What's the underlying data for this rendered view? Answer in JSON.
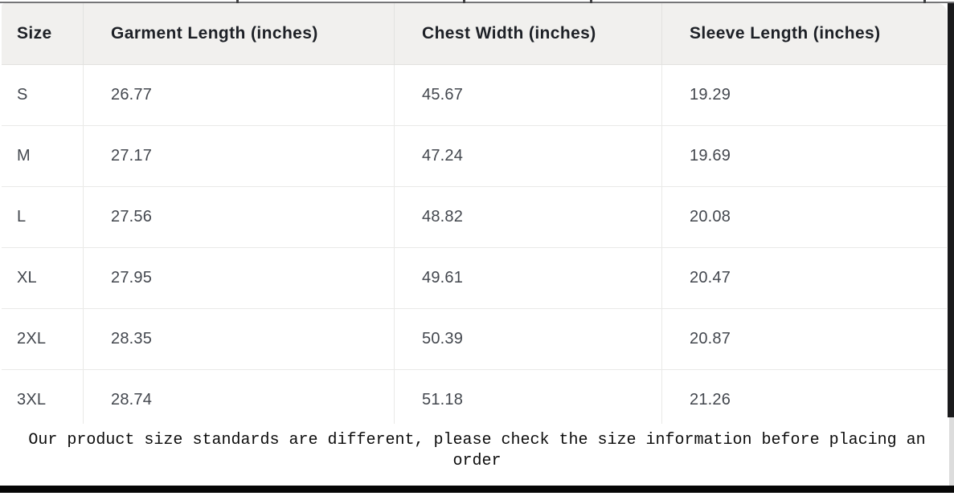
{
  "chart_data": {
    "type": "table",
    "columns": [
      "Size",
      "Garment Length (inches)",
      "Chest Width (inches)",
      "Sleeve Length (inches)"
    ],
    "rows": [
      [
        "S",
        "26.77",
        "45.67",
        "19.29"
      ],
      [
        "M",
        "27.17",
        "47.24",
        "19.69"
      ],
      [
        "L",
        "27.56",
        "48.82",
        "20.08"
      ],
      [
        "XL",
        "27.95",
        "49.61",
        "20.47"
      ],
      [
        "2XL",
        "28.35",
        "50.39",
        "20.87"
      ],
      [
        "3XL",
        "28.74",
        "51.18",
        "21.26"
      ]
    ],
    "units": "inches",
    "legend_position": "none",
    "grid": "light-gray row and column separators"
  },
  "note": {
    "text": "Our product size standards are different, please check the size information before placing an order"
  },
  "colors": {
    "header_bg": "#f1f0ee",
    "header_text": "#1d2026",
    "cell_text": "#43474e",
    "separator": "#e9e9e7",
    "top_rule": "#757577",
    "right_strip": "#1a1a1c",
    "bottom_bar": "#060606"
  }
}
